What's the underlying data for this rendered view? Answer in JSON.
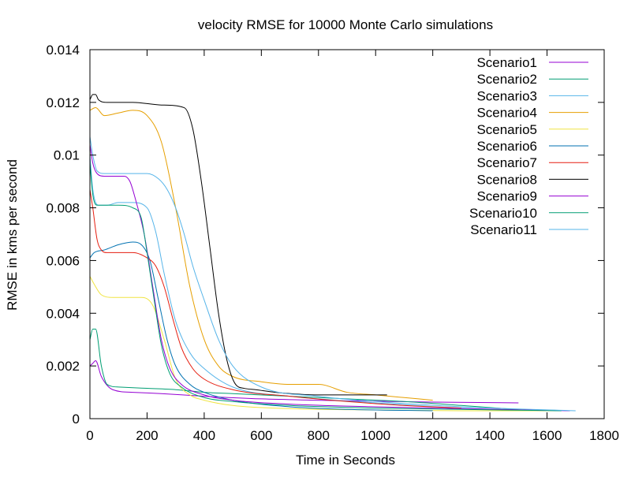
{
  "chart_data": {
    "type": "line",
    "title": "velocity RMSE for 10000 Monte Carlo simulations",
    "xlabel": "Time in Seconds",
    "ylabel": "RMSE in kms per second",
    "xlim": [
      0,
      1800
    ],
    "ylim": [
      0,
      0.014
    ],
    "x_ticks": [
      "0",
      "200",
      "400",
      "600",
      "800",
      "1000",
      "1200",
      "1400",
      "1600",
      "1800"
    ],
    "y_ticks": [
      "0",
      "0.002",
      "0.004",
      "0.006",
      "0.008",
      "0.01",
      "0.012",
      "0.014"
    ],
    "grid": false,
    "legend_position": "top-right",
    "series": [
      {
        "name": "Scenario1",
        "color": "#9400d3",
        "x": [
          0,
          10,
          20,
          40,
          80,
          150,
          250,
          400,
          600,
          900,
          1200,
          1500
        ],
        "y": [
          0.002,
          0.0021,
          0.0022,
          0.0016,
          0.0011,
          0.001,
          0.00095,
          0.00085,
          0.00075,
          0.00068,
          0.00063,
          0.0006
        ]
      },
      {
        "name": "Scenario2",
        "color": "#009e73",
        "x": [
          0,
          10,
          20,
          40,
          60,
          100,
          200,
          300,
          400,
          500,
          700,
          900,
          1100,
          1300,
          1550
        ],
        "y": [
          0.003,
          0.0034,
          0.0034,
          0.002,
          0.0013,
          0.0012,
          0.00115,
          0.0011,
          0.001,
          0.00095,
          0.00085,
          0.00075,
          0.00065,
          0.0005,
          0.0003
        ]
      },
      {
        "name": "Scenario3",
        "color": "#56b4e9",
        "x": [
          0,
          10,
          30,
          60,
          100,
          150,
          200,
          230,
          260,
          300,
          350,
          400,
          500,
          700,
          1000,
          1300,
          1550
        ],
        "y": [
          0.01,
          0.0087,
          0.0081,
          0.0081,
          0.0082,
          0.0082,
          0.008,
          0.0071,
          0.0055,
          0.0037,
          0.0025,
          0.0019,
          0.0012,
          0.00085,
          0.0006,
          0.0004,
          0.0003
        ]
      },
      {
        "name": "Scenario4",
        "color": "#e69f00",
        "x": [
          0,
          20,
          50,
          100,
          150,
          200,
          250,
          300,
          350,
          400,
          450,
          500,
          600,
          700,
          800,
          900,
          1000,
          1100,
          1200
        ],
        "y": [
          0.0117,
          0.0118,
          0.0115,
          0.0116,
          0.0117,
          0.0115,
          0.0105,
          0.008,
          0.005,
          0.003,
          0.002,
          0.0016,
          0.0014,
          0.0013,
          0.0013,
          0.001,
          0.0009,
          0.0008,
          0.0007
        ]
      },
      {
        "name": "Scenario5",
        "color": "#f0e442",
        "x": [
          0,
          15,
          40,
          80,
          130,
          180,
          220,
          260,
          300,
          350,
          400,
          500,
          700,
          1000,
          1300,
          1650
        ],
        "y": [
          0.0054,
          0.0051,
          0.0047,
          0.0046,
          0.0046,
          0.0046,
          0.0043,
          0.003,
          0.0015,
          0.0009,
          0.0007,
          0.0005,
          0.00038,
          0.00033,
          0.0003,
          0.0003
        ]
      },
      {
        "name": "Scenario6",
        "color": "#0072b2",
        "x": [
          0,
          15,
          50,
          100,
          150,
          180,
          210,
          240,
          270,
          300,
          350,
          400,
          500,
          700,
          900,
          1200
        ],
        "y": [
          0.0061,
          0.0063,
          0.0064,
          0.0066,
          0.0067,
          0.0066,
          0.006,
          0.0045,
          0.003,
          0.002,
          0.0013,
          0.001,
          0.0007,
          0.00045,
          0.00035,
          0.0003
        ]
      },
      {
        "name": "Scenario7",
        "color": "#e51e10",
        "x": [
          0,
          10,
          25,
          40,
          60,
          100,
          150,
          200,
          230,
          260,
          290,
          320,
          360,
          400,
          500,
          700,
          900,
          1100,
          1300
        ],
        "y": [
          0.0087,
          0.008,
          0.0068,
          0.0064,
          0.0063,
          0.0063,
          0.0063,
          0.0061,
          0.0058,
          0.005,
          0.0038,
          0.0027,
          0.0019,
          0.0015,
          0.0011,
          0.00085,
          0.00065,
          0.0005,
          0.0004
        ]
      },
      {
        "name": "Scenario8",
        "color": "#000000",
        "x": [
          0,
          10,
          20,
          30,
          60,
          150,
          250,
          330,
          360,
          390,
          420,
          450,
          480,
          510,
          540,
          580,
          650,
          800,
          1040
        ],
        "y": [
          0.0121,
          0.0123,
          0.0123,
          0.0121,
          0.012,
          0.012,
          0.0119,
          0.0118,
          0.011,
          0.009,
          0.0065,
          0.004,
          0.0022,
          0.0013,
          0.00115,
          0.0011,
          0.001,
          0.0009,
          0.0009
        ]
      },
      {
        "name": "Scenario9",
        "color": "#9400d3",
        "x": [
          0,
          10,
          25,
          50,
          80,
          120,
          140,
          160,
          190,
          220,
          250,
          280,
          320,
          400,
          500,
          700,
          1000,
          1300,
          1680
        ],
        "y": [
          0.0104,
          0.0097,
          0.0093,
          0.0092,
          0.0092,
          0.0092,
          0.009,
          0.0083,
          0.007,
          0.005,
          0.003,
          0.0019,
          0.0013,
          0.0009,
          0.0007,
          0.00055,
          0.00045,
          0.00038,
          0.0003
        ]
      },
      {
        "name": "Scenario10",
        "color": "#009e73",
        "x": [
          0,
          10,
          25,
          50,
          100,
          150,
          180,
          200,
          225,
          250,
          280,
          320,
          400,
          500,
          700,
          1000,
          1300,
          1650
        ],
        "y": [
          0.0097,
          0.0085,
          0.0081,
          0.0081,
          0.0081,
          0.008,
          0.0076,
          0.0063,
          0.0045,
          0.0028,
          0.0017,
          0.0012,
          0.0008,
          0.00065,
          0.0005,
          0.0004,
          0.00035,
          0.0003
        ]
      },
      {
        "name": "Scenario11",
        "color": "#56b4e9",
        "x": [
          0,
          10,
          25,
          50,
          100,
          200,
          240,
          270,
          300,
          330,
          360,
          400,
          450,
          500,
          600,
          800,
          1000,
          1300,
          1700
        ],
        "y": [
          0.0107,
          0.01,
          0.0094,
          0.0093,
          0.0093,
          0.0093,
          0.0091,
          0.0087,
          0.008,
          0.007,
          0.0058,
          0.0045,
          0.003,
          0.002,
          0.0012,
          0.00085,
          0.00065,
          0.00045,
          0.0003
        ]
      }
    ]
  }
}
